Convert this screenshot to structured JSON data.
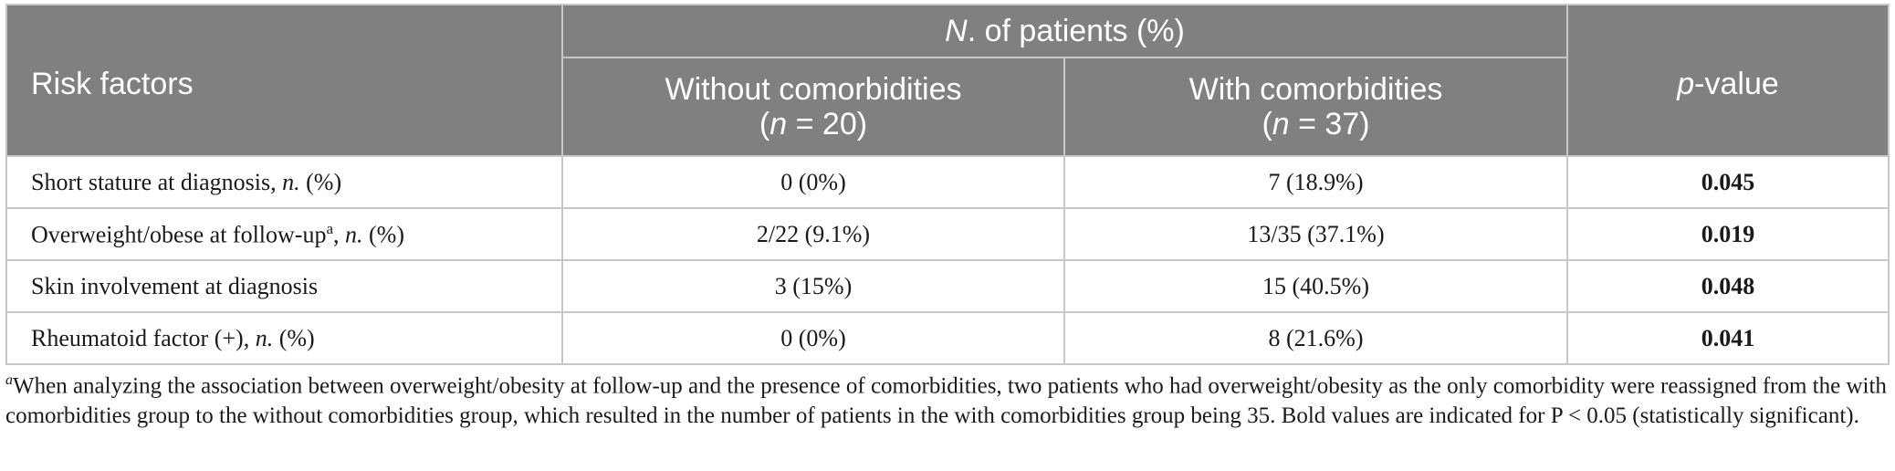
{
  "header": {
    "risk_factors": "Risk factors",
    "group_prefix_italic": "N",
    "group_suffix": ". of patients (%)",
    "pvalue_italic": "p",
    "pvalue_suffix": "-value",
    "without": {
      "label": "Without comorbidities",
      "n_open": "(",
      "n_italic": "n",
      "n_rest": " = 20)"
    },
    "with": {
      "label": "With comorbidities",
      "n_open": "(",
      "n_italic": "n",
      "n_rest": " = 37)"
    }
  },
  "rows": [
    {
      "label": "Short stature at diagnosis, ",
      "label_italic": "n.",
      "label_tail": " (%)",
      "without": "0 (0%)",
      "with": "7 (18.9%)",
      "p": "0.045"
    },
    {
      "label": "Overweight/obese at follow-up",
      "label_sup": "a",
      "label_mid": ", ",
      "label_italic": "n.",
      "label_tail": " (%)",
      "without": "2/22 (9.1%)",
      "with": "13/35 (37.1%)",
      "p": "0.019"
    },
    {
      "label": "Skin involvement at diagnosis",
      "without": "3 (15%)",
      "with": "15 (40.5%)",
      "p": "0.048"
    },
    {
      "label": "Rheumatoid factor (+), ",
      "label_italic": "n.",
      "label_tail": " (%)",
      "without": "0 (0%)",
      "with": "8 (21.6%)",
      "p": "0.041"
    }
  ],
  "footnote": {
    "marker": "a",
    "text": "When analyzing the association between overweight/obesity at follow-up and the presence of comorbidities, two patients who had overweight/obesity as the only comorbidity were reassigned from the with comorbidities group to the without comorbidities group, which resulted in the number of patients in the with comorbidities group being 35. Bold values are indicated for P < 0.05 (statistically significant)."
  }
}
